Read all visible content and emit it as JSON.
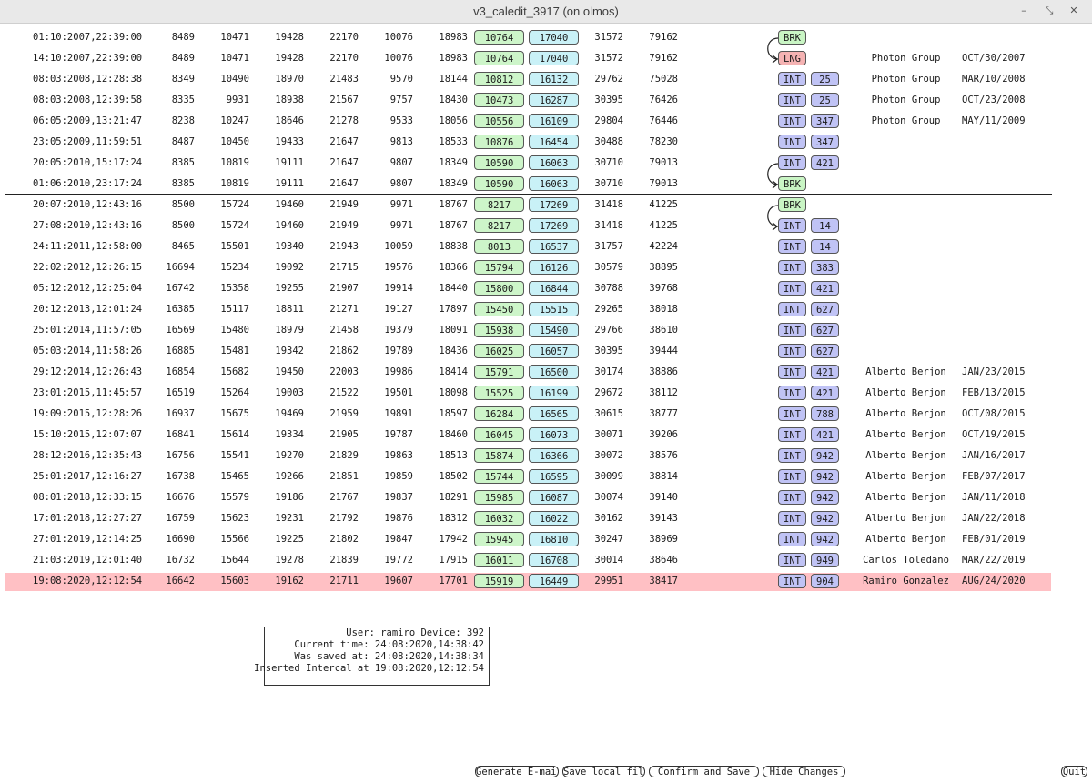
{
  "window": {
    "title": "v3_caledit_3917 (on olmos)",
    "controls": {
      "minimize": "–",
      "restore": "⤡",
      "close": "✕"
    }
  },
  "rows": [
    {
      "time": "01:10:2007,22:39:00",
      "v": [
        "8489",
        "10471",
        "19428",
        "22170",
        "10076",
        "18983"
      ],
      "g": "10764",
      "c": "17040",
      "v7": "31572",
      "v8": "79162",
      "type": "BRK",
      "num": "",
      "who": "",
      "date": ""
    },
    {
      "time": "14:10:2007,22:39:00",
      "v": [
        "8489",
        "10471",
        "19428",
        "22170",
        "10076",
        "18983"
      ],
      "g": "10764",
      "c": "17040",
      "v7": "31572",
      "v8": "79162",
      "type": "LNG",
      "num": "",
      "who": "Photon Group",
      "date": "OCT/30/2007"
    },
    {
      "time": "08:03:2008,12:28:38",
      "v": [
        "8349",
        "10490",
        "18970",
        "21483",
        "9570",
        "18144"
      ],
      "g": "10812",
      "c": "16132",
      "v7": "29762",
      "v8": "75028",
      "type": "INT",
      "num": "25",
      "who": "Photon Group",
      "date": "MAR/10/2008"
    },
    {
      "time": "08:03:2008,12:39:58",
      "v": [
        "8335",
        "9931",
        "18938",
        "21567",
        "9757",
        "18430"
      ],
      "g": "10473",
      "c": "16287",
      "v7": "30395",
      "v8": "76426",
      "type": "INT",
      "num": "25",
      "who": "Photon Group",
      "date": "OCT/23/2008"
    },
    {
      "time": "06:05:2009,13:21:47",
      "v": [
        "8238",
        "10247",
        "18646",
        "21278",
        "9533",
        "18056"
      ],
      "g": "10556",
      "c": "16109",
      "v7": "29804",
      "v8": "76446",
      "type": "INT",
      "num": "347",
      "who": "Photon Group",
      "date": "MAY/11/2009"
    },
    {
      "time": "23:05:2009,11:59:51",
      "v": [
        "8487",
        "10450",
        "19433",
        "21647",
        "9813",
        "18533"
      ],
      "g": "10876",
      "c": "16454",
      "v7": "30488",
      "v8": "78230",
      "type": "INT",
      "num": "347",
      "who": "",
      "date": ""
    },
    {
      "time": "20:05:2010,15:17:24",
      "v": [
        "8385",
        "10819",
        "19111",
        "21647",
        "9807",
        "18349"
      ],
      "g": "10590",
      "c": "16063",
      "v7": "30710",
      "v8": "79013",
      "type": "INT",
      "num": "421",
      "who": "",
      "date": ""
    },
    {
      "time": "01:06:2010,23:17:24",
      "v": [
        "8385",
        "10819",
        "19111",
        "21647",
        "9807",
        "18349"
      ],
      "g": "10590",
      "c": "16063",
      "v7": "30710",
      "v8": "79013",
      "type": "BRK",
      "num": "",
      "who": "",
      "date": ""
    },
    {
      "time": "20:07:2010,12:43:16",
      "v": [
        "8500",
        "15724",
        "19460",
        "21949",
        "9971",
        "18767"
      ],
      "g": "8217",
      "c": "17269",
      "v7": "31418",
      "v8": "41225",
      "type": "BRK",
      "num": "",
      "who": "",
      "date": ""
    },
    {
      "time": "27:08:2010,12:43:16",
      "v": [
        "8500",
        "15724",
        "19460",
        "21949",
        "9971",
        "18767"
      ],
      "g": "8217",
      "c": "17269",
      "v7": "31418",
      "v8": "41225",
      "type": "INT",
      "num": "14",
      "who": "",
      "date": ""
    },
    {
      "time": "24:11:2011,12:58:00",
      "v": [
        "8465",
        "15501",
        "19340",
        "21943",
        "10059",
        "18838"
      ],
      "g": "8013",
      "c": "16537",
      "v7": "31757",
      "v8": "42224",
      "type": "INT",
      "num": "14",
      "who": "",
      "date": ""
    },
    {
      "time": "22:02:2012,12:26:15",
      "v": [
        "16694",
        "15234",
        "19092",
        "21715",
        "19576",
        "18366"
      ],
      "g": "15794",
      "c": "16126",
      "v7": "30579",
      "v8": "38895",
      "type": "INT",
      "num": "383",
      "who": "",
      "date": ""
    },
    {
      "time": "05:12:2012,12:25:04",
      "v": [
        "16742",
        "15358",
        "19255",
        "21907",
        "19914",
        "18440"
      ],
      "g": "15800",
      "c": "16844",
      "v7": "30788",
      "v8": "39768",
      "type": "INT",
      "num": "421",
      "who": "",
      "date": ""
    },
    {
      "time": "20:12:2013,12:01:24",
      "v": [
        "16385",
        "15117",
        "18811",
        "21271",
        "19127",
        "17897"
      ],
      "g": "15450",
      "c": "15515",
      "v7": "29265",
      "v8": "38018",
      "type": "INT",
      "num": "627",
      "who": "",
      "date": ""
    },
    {
      "time": "25:01:2014,11:57:05",
      "v": [
        "16569",
        "15480",
        "18979",
        "21458",
        "19379",
        "18091"
      ],
      "g": "15938",
      "c": "15490",
      "v7": "29766",
      "v8": "38610",
      "type": "INT",
      "num": "627",
      "who": "",
      "date": ""
    },
    {
      "time": "05:03:2014,11:58:26",
      "v": [
        "16885",
        "15481",
        "19342",
        "21862",
        "19789",
        "18436"
      ],
      "g": "16025",
      "c": "16057",
      "v7": "30395",
      "v8": "39444",
      "type": "INT",
      "num": "627",
      "who": "",
      "date": ""
    },
    {
      "time": "29:12:2014,12:26:43",
      "v": [
        "16854",
        "15682",
        "19450",
        "22003",
        "19986",
        "18414"
      ],
      "g": "15791",
      "c": "16500",
      "v7": "30174",
      "v8": "38886",
      "type": "INT",
      "num": "421",
      "who": "Alberto Berjon",
      "date": "JAN/23/2015"
    },
    {
      "time": "23:01:2015,11:45:57",
      "v": [
        "16519",
        "15264",
        "19003",
        "21522",
        "19501",
        "18098"
      ],
      "g": "15525",
      "c": "16199",
      "v7": "29672",
      "v8": "38112",
      "type": "INT",
      "num": "421",
      "who": "Alberto Berjon",
      "date": "FEB/13/2015"
    },
    {
      "time": "19:09:2015,12:28:26",
      "v": [
        "16937",
        "15675",
        "19469",
        "21959",
        "19891",
        "18597"
      ],
      "g": "16284",
      "c": "16565",
      "v7": "30615",
      "v8": "38777",
      "type": "INT",
      "num": "788",
      "who": "Alberto Berjon",
      "date": "OCT/08/2015"
    },
    {
      "time": "15:10:2015,12:07:07",
      "v": [
        "16841",
        "15614",
        "19334",
        "21905",
        "19787",
        "18460"
      ],
      "g": "16045",
      "c": "16073",
      "v7": "30071",
      "v8": "39206",
      "type": "INT",
      "num": "421",
      "who": "Alberto Berjon",
      "date": "OCT/19/2015"
    },
    {
      "time": "28:12:2016,12:35:43",
      "v": [
        "16756",
        "15541",
        "19270",
        "21829",
        "19863",
        "18513"
      ],
      "g": "15874",
      "c": "16366",
      "v7": "30072",
      "v8": "38576",
      "type": "INT",
      "num": "942",
      "who": "Alberto Berjon",
      "date": "JAN/16/2017"
    },
    {
      "time": "25:01:2017,12:16:27",
      "v": [
        "16738",
        "15465",
        "19266",
        "21851",
        "19859",
        "18502"
      ],
      "g": "15744",
      "c": "16595",
      "v7": "30099",
      "v8": "38814",
      "type": "INT",
      "num": "942",
      "who": "Alberto Berjon",
      "date": "FEB/07/2017"
    },
    {
      "time": "08:01:2018,12:33:15",
      "v": [
        "16676",
        "15579",
        "19186",
        "21767",
        "19837",
        "18291"
      ],
      "g": "15985",
      "c": "16087",
      "v7": "30074",
      "v8": "39140",
      "type": "INT",
      "num": "942",
      "who": "Alberto Berjon",
      "date": "JAN/11/2018"
    },
    {
      "time": "17:01:2018,12:27:27",
      "v": [
        "16759",
        "15623",
        "19231",
        "21792",
        "19876",
        "18312"
      ],
      "g": "16032",
      "c": "16022",
      "v7": "30162",
      "v8": "39143",
      "type": "INT",
      "num": "942",
      "who": "Alberto Berjon",
      "date": "JAN/22/2018"
    },
    {
      "time": "27:01:2019,12:14:25",
      "v": [
        "16690",
        "15566",
        "19225",
        "21802",
        "19847",
        "17942"
      ],
      "g": "15945",
      "c": "16810",
      "v7": "30247",
      "v8": "38969",
      "type": "INT",
      "num": "942",
      "who": "Alberto Berjon",
      "date": "FEB/01/2019"
    },
    {
      "time": "21:03:2019,12:01:40",
      "v": [
        "16732",
        "15644",
        "19278",
        "21839",
        "19772",
        "17915"
      ],
      "g": "16011",
      "c": "16708",
      "v7": "30014",
      "v8": "38646",
      "type": "INT",
      "num": "949",
      "who": "Carlos Toledano",
      "date": "MAR/22/2019"
    },
    {
      "time": "19:08:2020,12:12:54",
      "v": [
        "16642",
        "15603",
        "19162",
        "21711",
        "19607",
        "17701"
      ],
      "g": "15919",
      "c": "16449",
      "v7": "29951",
      "v8": "38417",
      "type": "INT",
      "num": "904",
      "who": "Ramiro Gonzalez",
      "date": "AUG/24/2020",
      "highlight": true
    }
  ],
  "info": {
    "line1": "User: ramiro Device: 392",
    "line2": "Current time: 24:08:2020,14:38:42",
    "line3": "Was saved at: 24:08:2020,14:38:34",
    "line4": "Inserted Intercal at 19:08:2020,12:12:54"
  },
  "buttons": {
    "generate_email": "Generate E-mail",
    "save_local": "Save local file",
    "confirm_save": "Confirm and Save",
    "hide_changes": "Hide Changes",
    "quit": "Quit"
  }
}
